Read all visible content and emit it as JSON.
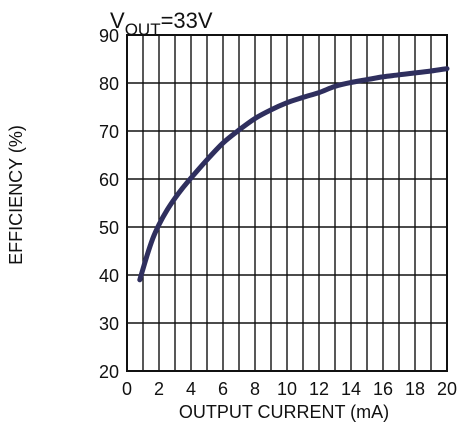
{
  "chart_data": {
    "type": "line",
    "annotation": {
      "prefix": "V",
      "subscript": "OUT",
      "suffix": "=33V"
    },
    "xlabel": "OUTPUT CURRENT (mA)",
    "ylabel": "EFFICIENCY (%)",
    "xlim": [
      0,
      20
    ],
    "ylim": [
      20,
      90
    ],
    "x_ticks": [
      0,
      2,
      4,
      6,
      8,
      10,
      12,
      14,
      16,
      18,
      20
    ],
    "y_ticks": [
      20,
      30,
      40,
      50,
      60,
      70,
      80,
      90
    ],
    "x_minor_step": 1,
    "grid": true,
    "colors": {
      "line": "#2f2f5e",
      "grid": "#111111",
      "text": "#111111"
    },
    "series": [
      {
        "x": [
          0.8,
          1.2,
          1.6,
          2.0,
          2.5,
          3.0,
          3.5,
          4.0,
          5.0,
          6.0,
          7.0,
          8.0,
          9.0,
          10.0,
          11.0,
          12.0,
          13.0,
          14.0,
          15.0,
          16.0,
          17.0,
          18.0,
          19.0,
          20.0
        ],
        "y": [
          39,
          43.5,
          47.5,
          50.5,
          53.5,
          56,
          58.2,
          60.2,
          64,
          67.5,
          70.2,
          72.6,
          74.4,
          75.9,
          77,
          78,
          79.3,
          80.1,
          80.7,
          81.3,
          81.7,
          82.1,
          82.5,
          83
        ]
      }
    ]
  }
}
